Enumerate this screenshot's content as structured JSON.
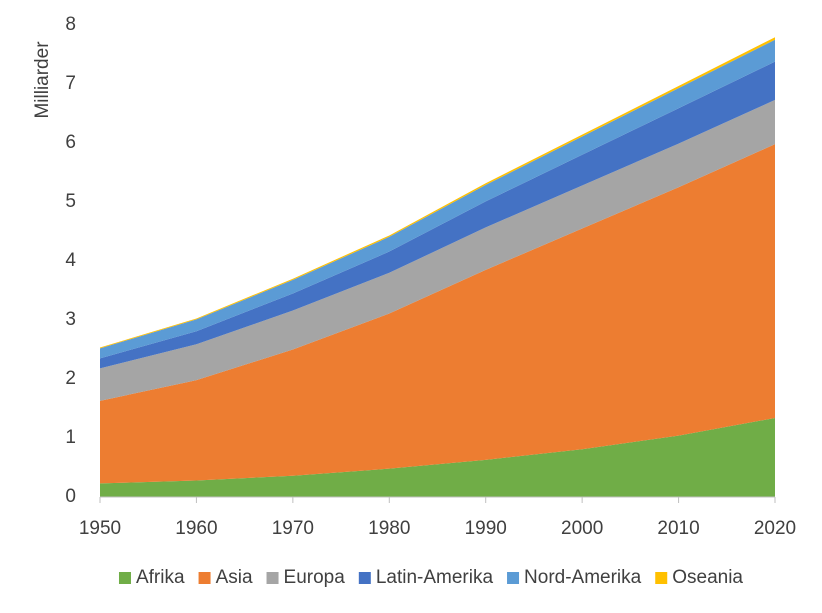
{
  "chart_data": {
    "type": "stacked_area",
    "y_label": "Milliarder",
    "x": [
      1950,
      1960,
      1970,
      1980,
      1990,
      2000,
      2010,
      2020
    ],
    "series": [
      {
        "name": "Afrika",
        "color": "#70ad47",
        "values": [
          0.23,
          0.28,
          0.36,
          0.48,
          0.63,
          0.81,
          1.04,
          1.34
        ]
      },
      {
        "name": "Asia",
        "color": "#ed7d31",
        "values": [
          1.4,
          1.7,
          2.14,
          2.63,
          3.22,
          3.74,
          4.21,
          4.64
        ]
      },
      {
        "name": "Europa",
        "color": "#a5a5a5",
        "values": [
          0.55,
          0.61,
          0.66,
          0.69,
          0.72,
          0.73,
          0.74,
          0.75
        ]
      },
      {
        "name": "Latin-Amerika",
        "color": "#4472c4",
        "values": [
          0.17,
          0.22,
          0.29,
          0.36,
          0.44,
          0.52,
          0.6,
          0.65
        ]
      },
      {
        "name": "Nord-Amerika",
        "color": "#5b9bd5",
        "values": [
          0.17,
          0.2,
          0.23,
          0.25,
          0.28,
          0.31,
          0.34,
          0.37
        ]
      },
      {
        "name": "Oseania",
        "color": "#ffc000",
        "values": [
          0.013,
          0.016,
          0.02,
          0.023,
          0.027,
          0.031,
          0.037,
          0.043
        ]
      }
    ],
    "xlim": [
      1950,
      2020
    ],
    "xticks": [
      1950,
      1960,
      1970,
      1980,
      1990,
      2000,
      2010,
      2020
    ],
    "ylim": [
      0,
      8
    ],
    "yticks": [
      0,
      1,
      2,
      3,
      4,
      5,
      6,
      7,
      8
    ],
    "grid": false,
    "legend": "bottom"
  }
}
